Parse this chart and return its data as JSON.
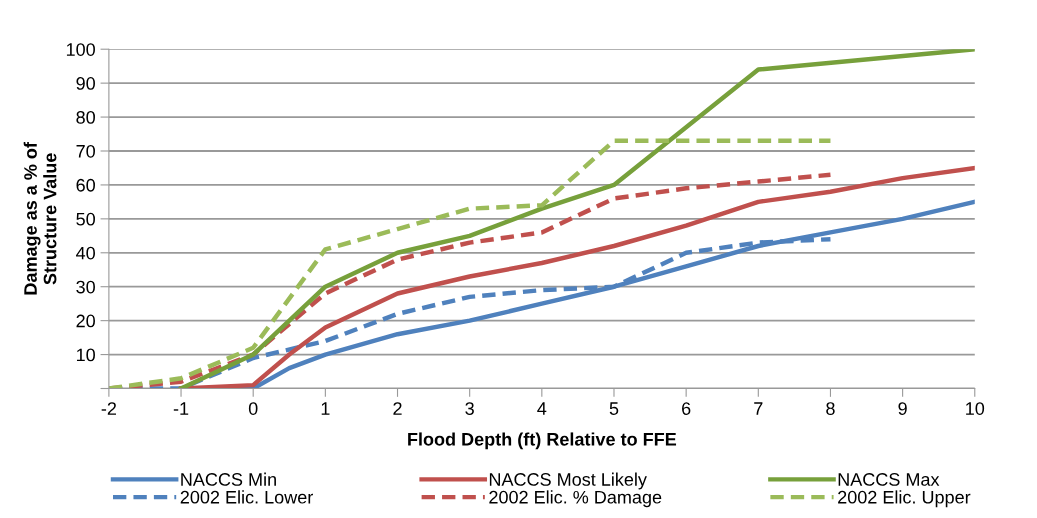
{
  "chart_data": {
    "type": "line",
    "xlabel": "Flood Depth (ft) Relative to FFE",
    "ylabel": "Damage as a % of\nStructure Value",
    "xlim": [
      -2,
      10
    ],
    "xticks": [
      -2,
      -1,
      0,
      1,
      2,
      3,
      4,
      5,
      6,
      7,
      8,
      9,
      10
    ],
    "ylim": [
      0,
      100
    ],
    "yticks": [
      {
        "value": 0,
        "label": null
      },
      10,
      20,
      30,
      40,
      50,
      60,
      70,
      80,
      90,
      100
    ],
    "grid": "y",
    "legend": "bottom",
    "series": [
      {
        "name": "NACCS Min",
        "color": "#4f81bd",
        "line_style": "solid",
        "x": [
          -1,
          0,
          0.5,
          1,
          2,
          3,
          4,
          5,
          6,
          7,
          8,
          9,
          10
        ],
        "values": [
          0,
          0,
          6,
          10,
          16,
          20,
          25,
          30,
          36,
          42,
          46,
          50,
          55
        ]
      },
      {
        "name": "2002 Elic. Lower",
        "color": "#4f81bd",
        "line_style": "dashed",
        "x": [
          -2,
          -1,
          0,
          1,
          2,
          3,
          4,
          5,
          6,
          7,
          8
        ],
        "values": [
          0,
          0,
          9,
          14,
          22,
          27,
          29,
          30,
          40,
          43,
          44
        ]
      },
      {
        "name": "NACCS Most Likely",
        "color": "#c0504d",
        "line_style": "solid",
        "x": [
          -1,
          0,
          0.5,
          1,
          2,
          3,
          4,
          5,
          6,
          7,
          8,
          9,
          10
        ],
        "values": [
          0,
          1,
          10,
          18,
          28,
          33,
          37,
          42,
          48,
          55,
          58,
          62,
          65
        ]
      },
      {
        "name": "2002 Elic. % Damage",
        "color": "#c0504d",
        "line_style": "dashed",
        "x": [
          -2,
          -1,
          0,
          1,
          2,
          3,
          4,
          5,
          6,
          7,
          8
        ],
        "values": [
          0,
          2,
          10,
          28,
          38,
          43,
          46,
          56,
          59,
          61,
          63
        ]
      },
      {
        "name": "NACCS Max",
        "color": "#77a03b",
        "line_style": "solid",
        "x": [
          -1,
          0,
          1,
          2,
          3,
          4,
          5,
          7,
          10
        ],
        "values": [
          0,
          10,
          30,
          40,
          45,
          53,
          60,
          94,
          100
        ]
      },
      {
        "name": "2002 Elic. Upper",
        "color": "#9bbb59",
        "line_style": "dashed",
        "x": [
          -2,
          -1,
          0,
          1,
          2,
          3,
          4,
          5,
          6,
          7,
          8
        ],
        "values": [
          0,
          3,
          12,
          41,
          47,
          53,
          54,
          73,
          73,
          73,
          73
        ]
      }
    ]
  }
}
